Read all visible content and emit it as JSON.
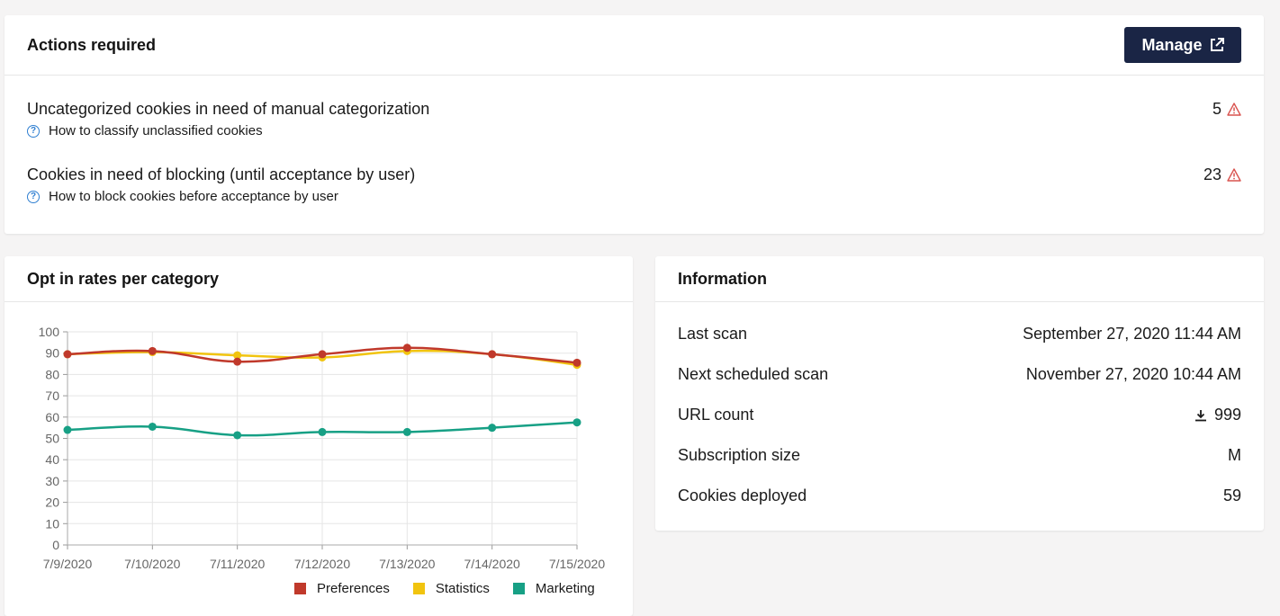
{
  "actions": {
    "title": "Actions required",
    "manage_label": "Manage",
    "items": [
      {
        "title": "Uncategorized cookies in need of manual categorization",
        "link": "How to classify unclassified cookies",
        "count": "5"
      },
      {
        "title": "Cookies in need of blocking (until acceptance by user)",
        "link": "How to block cookies before acceptance by user",
        "count": "23"
      }
    ]
  },
  "optin": {
    "title": "Opt in rates per category"
  },
  "info": {
    "title": "Information",
    "rows": [
      {
        "label": "Last scan",
        "value": "September 27, 2020 11:44 AM"
      },
      {
        "label": "Next scheduled scan",
        "value": "November 27, 2020 10:44 AM"
      },
      {
        "label": "URL count",
        "value": "999"
      },
      {
        "label": "Subscription size",
        "value": "M"
      },
      {
        "label": "Cookies deployed",
        "value": "59"
      }
    ]
  },
  "colors": {
    "preferences": "#c0392b",
    "statistics": "#f1c40f",
    "marketing": "#17a085",
    "button": "#1a2545",
    "warning": "#d9534f",
    "help": "#2f7fd1"
  },
  "chart_data": {
    "type": "line",
    "categories": [
      "7/9/2020",
      "7/10/2020",
      "7/11/2020",
      "7/12/2020",
      "7/13/2020",
      "7/14/2020",
      "7/15/2020"
    ],
    "series": [
      {
        "name": "Preferences",
        "values": [
          89.5,
          91,
          86,
          89.5,
          92.5,
          89.5,
          85.5
        ]
      },
      {
        "name": "Statistics",
        "values": [
          89.5,
          90.5,
          89,
          88,
          91,
          89.5,
          84.5
        ]
      },
      {
        "name": "Marketing",
        "values": [
          54,
          55.5,
          51.5,
          53,
          53,
          55,
          57.5
        ]
      }
    ],
    "title": "",
    "xlabel": "",
    "ylabel": "",
    "ylim": [
      0,
      100
    ],
    "yticks": [
      "0",
      "10",
      "20",
      "30",
      "40",
      "50",
      "60",
      "70",
      "80",
      "90",
      "100"
    ],
    "grid": true,
    "legend": "bottom"
  }
}
